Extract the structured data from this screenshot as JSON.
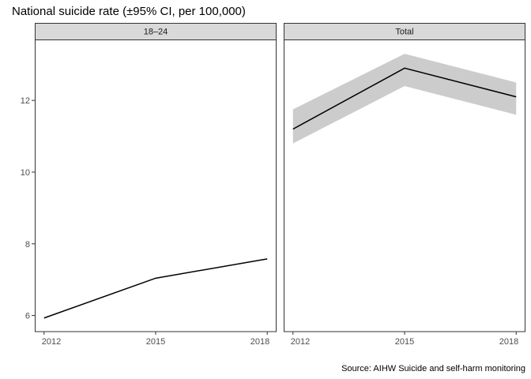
{
  "chart_data": {
    "type": "line",
    "title": "National suicide rate (±95% CI, per 100,000)",
    "caption": "Source: AIHW Suicide and self-harm monitoring",
    "x": [
      2012,
      2015,
      2018
    ],
    "x_tick_labels": [
      "2012",
      "2015",
      "2018"
    ],
    "y_ticks": [
      6,
      8,
      10,
      12
    ],
    "y_tick_labels": [
      "6",
      "8",
      "10",
      "12"
    ],
    "xlim": [
      2011.75,
      2018.25
    ],
    "ylim": [
      5.55,
      13.7
    ],
    "grid": false,
    "facets": [
      {
        "label": "18–24",
        "values": [
          5.93,
          7.04,
          7.58
        ],
        "ci_lower": null,
        "ci_upper": null
      },
      {
        "label": "Total",
        "values": [
          11.2,
          12.9,
          12.1
        ],
        "ci_lower": [
          10.8,
          12.4,
          11.6
        ],
        "ci_upper": [
          11.75,
          13.3,
          12.5
        ]
      }
    ],
    "colors": {
      "line": "#000000",
      "ribbon": "#cccccc",
      "strip": "#d9d9d9",
      "border": "#333333",
      "tick_text": "#4d4d4d"
    }
  }
}
